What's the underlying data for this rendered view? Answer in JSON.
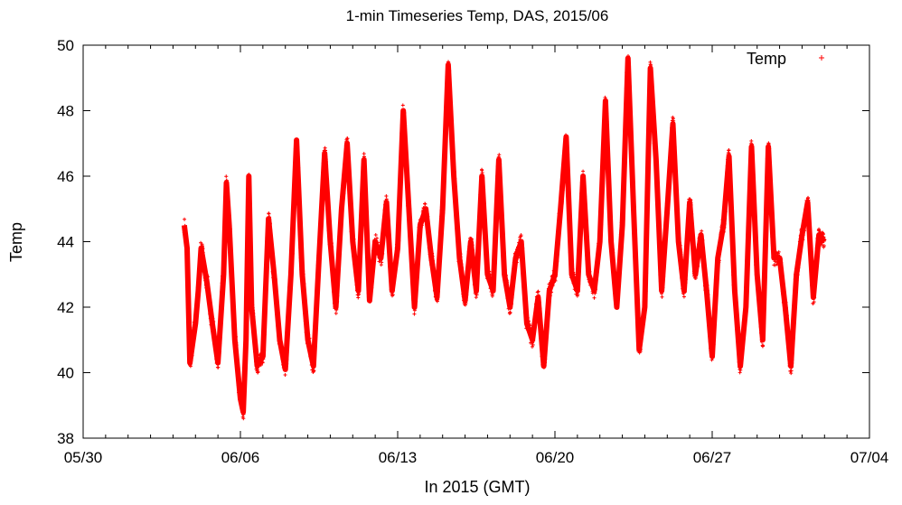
{
  "chart_data": {
    "type": "scatter",
    "title": "1-min Timeseries Temp, DAS, 2015/06",
    "xlabel": "In 2015 (GMT)",
    "ylabel": "Temp",
    "xlim": [
      "2015-05-30",
      "2015-07-04"
    ],
    "ylim": [
      38,
      50
    ],
    "x_ticks": [
      "05/30",
      "06/06",
      "06/13",
      "06/20",
      "06/27",
      "07/04"
    ],
    "y_ticks": [
      "38",
      "40",
      "42",
      "44",
      "46",
      "48",
      "50"
    ],
    "grid": false,
    "legend_position": "top-right",
    "marker_color": "#ff0000",
    "series": [
      {
        "name": "Temp",
        "note_units": "x in days, Temp in data units",
        "points": [
          [
            "2015-06-03 12:00",
            44.5
          ],
          [
            "2015-06-03 15:00",
            43.8
          ],
          [
            "2015-06-03 18:00",
            40.3
          ],
          [
            "2015-06-04 00:00",
            41.5
          ],
          [
            "2015-06-04 03:00",
            42.5
          ],
          [
            "2015-06-04 06:00",
            43.8
          ],
          [
            "2015-06-04 12:00",
            42.8
          ],
          [
            "2015-06-04 18:00",
            41.5
          ],
          [
            "2015-06-05 00:00",
            40.3
          ],
          [
            "2015-06-05 06:00",
            43.0
          ],
          [
            "2015-06-05 09:00",
            45.8
          ],
          [
            "2015-06-05 12:00",
            44.5
          ],
          [
            "2015-06-05 18:00",
            41.0
          ],
          [
            "2015-06-06 00:00",
            39.2
          ],
          [
            "2015-06-06 03:00",
            38.8
          ],
          [
            "2015-06-06 06:00",
            41.0
          ],
          [
            "2015-06-06 09:00",
            46.0
          ],
          [
            "2015-06-06 12:00",
            42.0
          ],
          [
            "2015-06-06 18:00",
            40.2
          ],
          [
            "2015-06-07 00:00",
            40.5
          ],
          [
            "2015-06-07 06:00",
            44.7
          ],
          [
            "2015-06-07 12:00",
            43.0
          ],
          [
            "2015-06-07 18:00",
            41.0
          ],
          [
            "2015-06-08 00:00",
            40.1
          ],
          [
            "2015-06-08 06:00",
            43.0
          ],
          [
            "2015-06-08 12:00",
            47.1
          ],
          [
            "2015-06-08 18:00",
            43.0
          ],
          [
            "2015-06-09 00:00",
            41.0
          ],
          [
            "2015-06-09 06:00",
            40.2
          ],
          [
            "2015-06-09 12:00",
            43.5
          ],
          [
            "2015-06-09 18:00",
            46.7
          ],
          [
            "2015-06-10 00:00",
            44.0
          ],
          [
            "2015-06-10 06:00",
            42.0
          ],
          [
            "2015-06-10 12:00",
            45.0
          ],
          [
            "2015-06-10 18:00",
            47.0
          ],
          [
            "2015-06-11 00:00",
            44.0
          ],
          [
            "2015-06-11 06:00",
            42.5
          ],
          [
            "2015-06-11 12:00",
            46.5
          ],
          [
            "2015-06-11 18:00",
            42.2
          ],
          [
            "2015-06-12 00:00",
            44.0
          ],
          [
            "2015-06-12 06:00",
            43.5
          ],
          [
            "2015-06-12 12:00",
            45.2
          ],
          [
            "2015-06-12 18:00",
            42.5
          ],
          [
            "2015-06-13 00:00",
            43.8
          ],
          [
            "2015-06-13 06:00",
            48.0
          ],
          [
            "2015-06-13 12:00",
            45.0
          ],
          [
            "2015-06-13 18:00",
            42.0
          ],
          [
            "2015-06-14 00:00",
            44.5
          ],
          [
            "2015-06-14 06:00",
            45.0
          ],
          [
            "2015-06-14 12:00",
            43.5
          ],
          [
            "2015-06-14 18:00",
            42.3
          ],
          [
            "2015-06-15 00:00",
            45.0
          ],
          [
            "2015-06-15 06:00",
            49.4
          ],
          [
            "2015-06-15 12:00",
            46.0
          ],
          [
            "2015-06-15 18:00",
            43.5
          ],
          [
            "2015-06-16 00:00",
            42.2
          ],
          [
            "2015-06-16 06:00",
            44.0
          ],
          [
            "2015-06-16 12:00",
            42.5
          ],
          [
            "2015-06-16 18:00",
            46.0
          ],
          [
            "2015-06-17 00:00",
            43.0
          ],
          [
            "2015-06-17 06:00",
            42.5
          ],
          [
            "2015-06-17 12:00",
            46.5
          ],
          [
            "2015-06-17 18:00",
            43.0
          ],
          [
            "2015-06-18 00:00",
            42.0
          ],
          [
            "2015-06-18 06:00",
            43.5
          ],
          [
            "2015-06-18 12:00",
            44.0
          ],
          [
            "2015-06-18 18:00",
            41.5
          ],
          [
            "2015-06-19 00:00",
            41.0
          ],
          [
            "2015-06-19 06:00",
            42.3
          ],
          [
            "2015-06-19 12:00",
            40.2
          ],
          [
            "2015-06-19 18:00",
            42.5
          ],
          [
            "2015-06-20 00:00",
            43.0
          ],
          [
            "2015-06-20 06:00",
            45.0
          ],
          [
            "2015-06-20 12:00",
            47.2
          ],
          [
            "2015-06-20 18:00",
            43.0
          ],
          [
            "2015-06-21 00:00",
            42.5
          ],
          [
            "2015-06-21 06:00",
            46.0
          ],
          [
            "2015-06-21 12:00",
            43.0
          ],
          [
            "2015-06-21 18:00",
            42.5
          ],
          [
            "2015-06-22 00:00",
            44.0
          ],
          [
            "2015-06-22 06:00",
            48.3
          ],
          [
            "2015-06-22 12:00",
            44.0
          ],
          [
            "2015-06-22 18:00",
            42.0
          ],
          [
            "2015-06-23 00:00",
            44.5
          ],
          [
            "2015-06-23 06:00",
            49.6
          ],
          [
            "2015-06-23 12:00",
            45.0
          ],
          [
            "2015-06-23 18:00",
            40.7
          ],
          [
            "2015-06-24 00:00",
            42.0
          ],
          [
            "2015-06-24 06:00",
            49.3
          ],
          [
            "2015-06-24 12:00",
            46.5
          ],
          [
            "2015-06-24 18:00",
            42.5
          ],
          [
            "2015-06-25 00:00",
            45.0
          ],
          [
            "2015-06-25 06:00",
            47.6
          ],
          [
            "2015-06-25 12:00",
            44.0
          ],
          [
            "2015-06-25 18:00",
            42.5
          ],
          [
            "2015-06-26 00:00",
            45.2
          ],
          [
            "2015-06-26 06:00",
            43.0
          ],
          [
            "2015-06-26 12:00",
            44.2
          ],
          [
            "2015-06-26 18:00",
            42.5
          ],
          [
            "2015-06-27 00:00",
            40.5
          ],
          [
            "2015-06-27 06:00",
            43.5
          ],
          [
            "2015-06-27 12:00",
            44.5
          ],
          [
            "2015-06-27 18:00",
            46.6
          ],
          [
            "2015-06-28 00:00",
            42.5
          ],
          [
            "2015-06-28 06:00",
            40.2
          ],
          [
            "2015-06-28 12:00",
            42.0
          ],
          [
            "2015-06-28 18:00",
            46.9
          ],
          [
            "2015-06-29 00:00",
            43.0
          ],
          [
            "2015-06-29 06:00",
            41.0
          ],
          [
            "2015-06-29 12:00",
            46.9
          ],
          [
            "2015-06-29 18:00",
            43.5
          ],
          [
            "2015-06-30 00:00",
            43.5
          ],
          [
            "2015-06-30 06:00",
            42.0
          ],
          [
            "2015-06-30 12:00",
            40.2
          ],
          [
            "2015-06-30 18:00",
            43.0
          ],
          [
            "2015-07-01 00:00",
            44.2
          ],
          [
            "2015-07-01 06:00",
            45.2
          ],
          [
            "2015-07-01 12:00",
            42.3
          ],
          [
            "2015-07-01 18:00",
            44.2
          ],
          [
            "2015-07-02 00:00",
            44.0
          ]
        ]
      }
    ]
  }
}
